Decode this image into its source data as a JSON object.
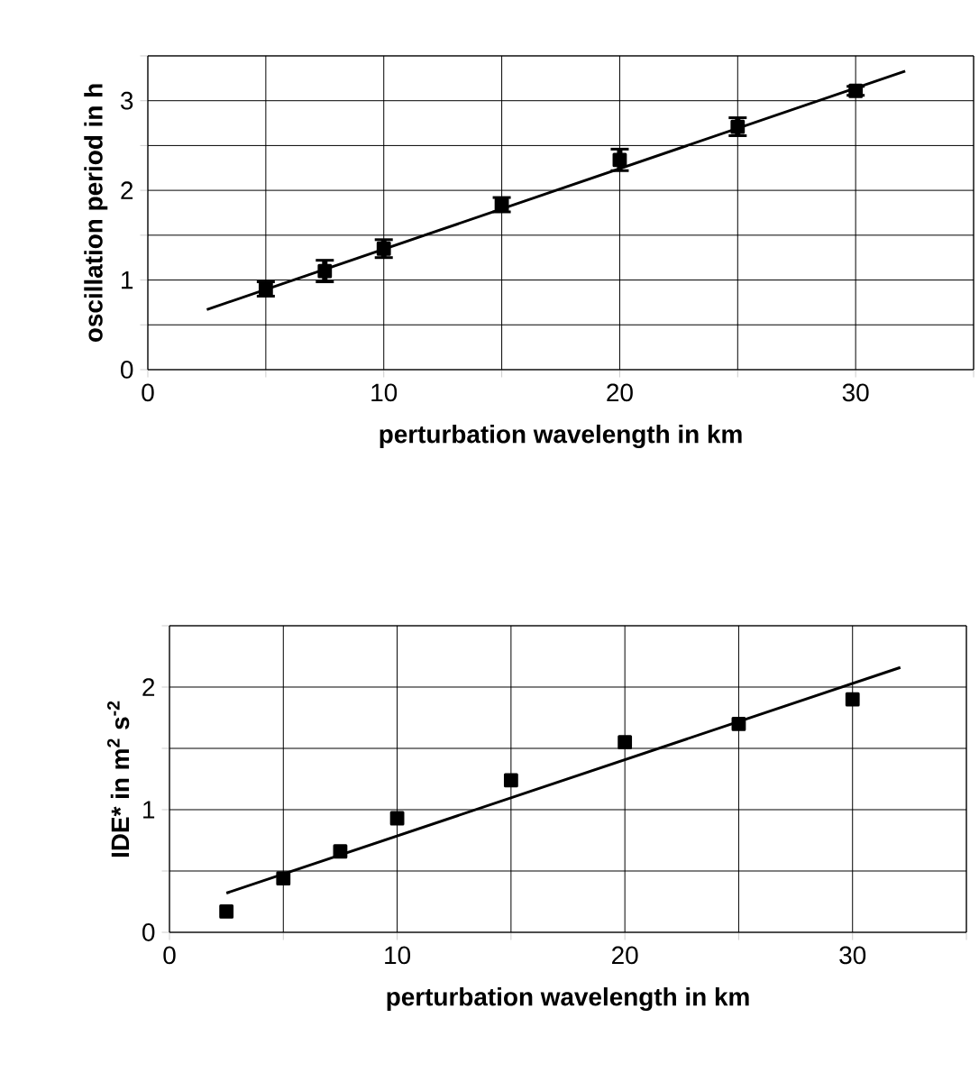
{
  "chart_data": [
    {
      "type": "scatter",
      "xlabel": "perturbation wavelength in km",
      "ylabel": "oscillation period in h",
      "xlim": [
        0,
        35
      ],
      "ylim": [
        0,
        3.5
      ],
      "xticks": [
        0,
        {
          "value": 5,
          "label": null
        },
        10,
        {
          "value": 15,
          "label": null
        },
        20,
        {
          "value": 25,
          "label": null
        },
        30,
        {
          "value": 35,
          "label": null
        }
      ],
      "yticks": [
        0,
        {
          "value": 0.5,
          "label": null
        },
        1,
        {
          "value": 1.5,
          "label": null
        },
        2,
        {
          "value": 2.5,
          "label": null
        },
        3,
        {
          "value": 3.5,
          "label": null
        }
      ],
      "grid": true,
      "series": [
        {
          "marker": "square",
          "color": "#000000",
          "x": [
            5,
            7.5,
            10,
            15,
            20,
            25,
            30
          ],
          "values": [
            0.9,
            1.1,
            1.35,
            1.84,
            2.34,
            2.71,
            3.11
          ],
          "errors": [
            0.08,
            0.12,
            0.1,
            0.08,
            0.12,
            0.1,
            0.05
          ]
        },
        {
          "type": "line",
          "marker": "none",
          "color": "#000000",
          "x": [
            2.5,
            32.1
          ],
          "values": [
            0.67,
            3.33
          ]
        }
      ]
    },
    {
      "type": "scatter",
      "xlabel": "perturbation wavelength in km",
      "ylabel": "IDE* in m$^{2}$ s$^{-2}$",
      "xlim": [
        0,
        35
      ],
      "ylim": [
        0,
        2.5
      ],
      "xticks": [
        0,
        {
          "value": 5,
          "label": null
        },
        10,
        {
          "value": 15,
          "label": null
        },
        20,
        {
          "value": 25,
          "label": null
        },
        30,
        {
          "value": 35,
          "label": null
        }
      ],
      "yticks": [
        0,
        {
          "value": 0.5,
          "label": null
        },
        1,
        {
          "value": 1.5,
          "label": null
        },
        2,
        {
          "value": 2.5,
          "label": null
        }
      ],
      "grid": true,
      "series": [
        {
          "marker": "square",
          "color": "#000000",
          "x": [
            2.5,
            5,
            7.5,
            10,
            15,
            20,
            25,
            30
          ],
          "values": [
            0.17,
            0.44,
            0.66,
            0.93,
            1.24,
            1.55,
            1.7,
            1.9
          ]
        },
        {
          "type": "line",
          "marker": "none",
          "color": "#000000",
          "x": [
            2.5,
            32.1
          ],
          "values": [
            0.32,
            2.16
          ]
        }
      ]
    }
  ]
}
